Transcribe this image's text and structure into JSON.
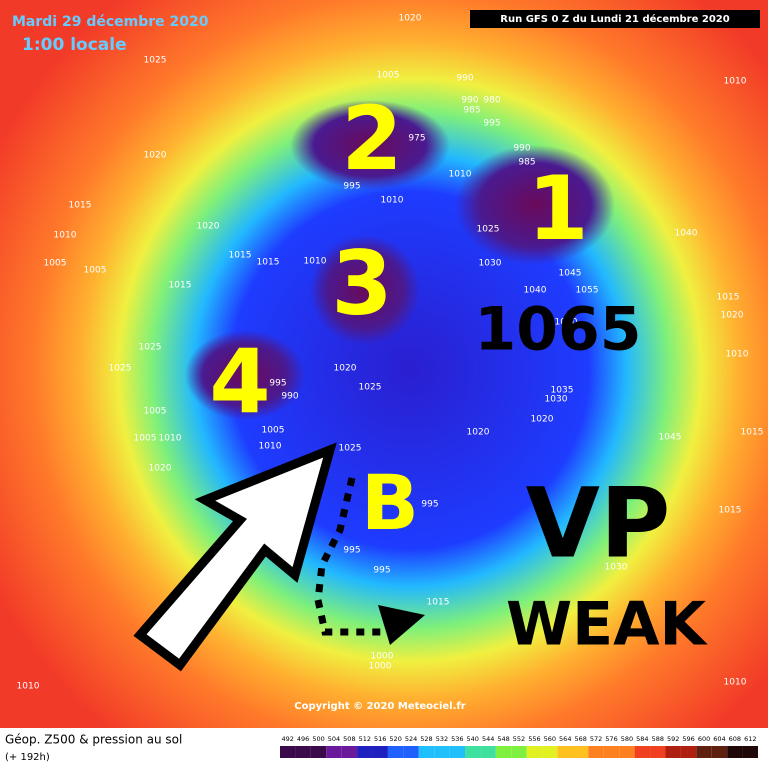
{
  "header": {
    "date": "Mardi 29 décembre 2020",
    "time": "1:00 locale",
    "run": "Run GFS 0 Z du Lundi 21 décembre 2020"
  },
  "annotations": {
    "vortices": [
      "1",
      "2",
      "3",
      "4"
    ],
    "high": "1065",
    "b": "B",
    "vp": "VP",
    "weak": "WEAK"
  },
  "isobar_labels": [
    "1020",
    "1025",
    "1020",
    "1015",
    "1010",
    "1005",
    "1005",
    "1015",
    "1025",
    "1025",
    "1005",
    "1005",
    "1010",
    "1020",
    "1010",
    "1005",
    "990",
    "990",
    "980",
    "985",
    "995",
    "990",
    "985",
    "975",
    "995",
    "1010",
    "1010",
    "1025",
    "1030",
    "1040",
    "1045",
    "1055",
    "1060",
    "1035",
    "1030",
    "1020",
    "1020",
    "1025",
    "1020",
    "995",
    "990",
    "1005",
    "1010",
    "1025",
    "995",
    "995",
    "995",
    "1015",
    "1000",
    "1000",
    "1040",
    "1010",
    "1015",
    "1020",
    "1010",
    "1015",
    "1045",
    "1015",
    "1030",
    "1010",
    "1020",
    "1015",
    "1015",
    "1010"
  ],
  "copyright": "Copyright © 2020 Meteociel.fr",
  "footer": {
    "title": "Géop. Z500 & pression au sol",
    "subtitle": "(+ 192h)",
    "scale": [
      492,
      496,
      500,
      504,
      508,
      512,
      516,
      520,
      524,
      528,
      532,
      536,
      540,
      544,
      548,
      552,
      556,
      560,
      564,
      568,
      572,
      576,
      580,
      584,
      588,
      592,
      596,
      600,
      604,
      608,
      612
    ]
  }
}
